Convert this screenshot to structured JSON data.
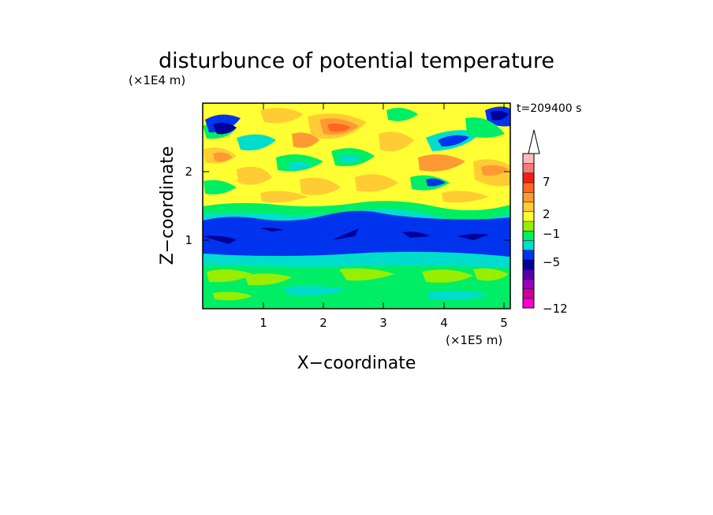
{
  "chart_data": {
    "type": "heatmap",
    "title": "disturbunce of potential temperature",
    "time_label": "t=209400 s",
    "xlabel": "X−coordinate",
    "ylabel": "Z−coordinate",
    "x_unit": "(×1E5 m)",
    "y_unit": "(×1E4 m)",
    "x_ticks": [
      "1",
      "2",
      "3",
      "4",
      "5"
    ],
    "y_ticks": [
      "1",
      "2"
    ],
    "xlim": [
      0,
      5.12
    ],
    "ylim": [
      0,
      2.95
    ],
    "colorbar": {
      "extend": "max",
      "tick_labels": [
        "7",
        "2",
        "−1",
        "−5",
        "−12"
      ],
      "colors": [
        "#ff00cc",
        "#cc0099",
        "#9900bb",
        "#5500aa",
        "#000099",
        "#0033ee",
        "#00ddcc",
        "#00ee66",
        "#99ee00",
        "#ffff33",
        "#ffcc33",
        "#ff9933",
        "#ff6622",
        "#ee2211",
        "#ff7777",
        "#ffbbbb"
      ]
    },
    "bands": [
      {
        "z_range": [
          0,
          0.9
        ],
        "level": "−1 to 1"
      },
      {
        "z_range": [
          0.9,
          1.4
        ],
        "level": "below −5"
      },
      {
        "z_range": [
          1.4,
          2.95
        ],
        "level": "−1 to 7"
      }
    ]
  }
}
